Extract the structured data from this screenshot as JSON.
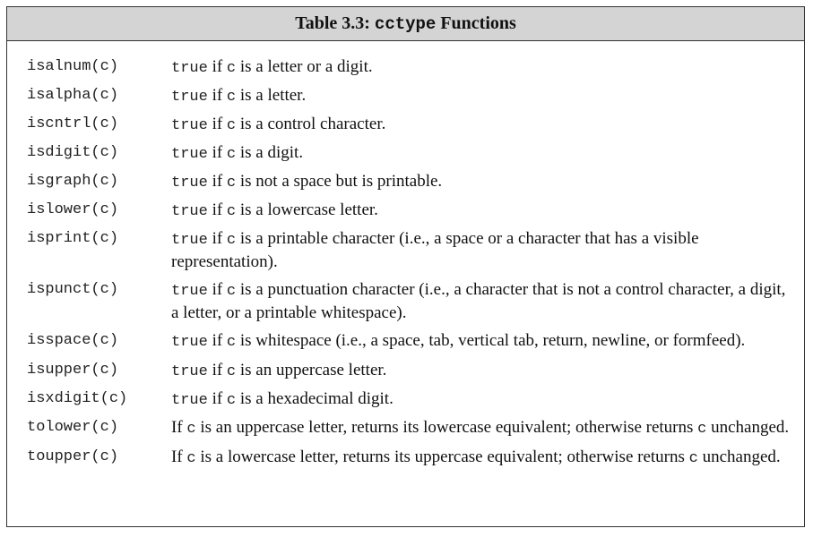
{
  "title": {
    "prefix": "Table 3.3: ",
    "code": "cctype",
    "suffix": " Functions"
  },
  "rows": [
    {
      "fn": "isalnum(c)",
      "parts": [
        [
          "m",
          "true"
        ],
        [
          "t",
          " if "
        ],
        [
          "m",
          "c"
        ],
        [
          "t",
          " is a letter or a digit."
        ]
      ]
    },
    {
      "fn": "isalpha(c)",
      "parts": [
        [
          "m",
          "true"
        ],
        [
          "t",
          " if "
        ],
        [
          "m",
          "c"
        ],
        [
          "t",
          " is a letter."
        ]
      ]
    },
    {
      "fn": "iscntrl(c)",
      "parts": [
        [
          "m",
          "true"
        ],
        [
          "t",
          " if "
        ],
        [
          "m",
          "c"
        ],
        [
          "t",
          " is a control character."
        ]
      ]
    },
    {
      "fn": "isdigit(c)",
      "parts": [
        [
          "m",
          "true"
        ],
        [
          "t",
          " if "
        ],
        [
          "m",
          "c"
        ],
        [
          "t",
          " is a digit."
        ]
      ]
    },
    {
      "fn": "isgraph(c)",
      "parts": [
        [
          "m",
          "true"
        ],
        [
          "t",
          " if "
        ],
        [
          "m",
          "c"
        ],
        [
          "t",
          " is not a space but is printable."
        ]
      ]
    },
    {
      "fn": "islower(c)",
      "parts": [
        [
          "m",
          "true"
        ],
        [
          "t",
          " if "
        ],
        [
          "m",
          "c"
        ],
        [
          "t",
          " is a lowercase letter."
        ]
      ]
    },
    {
      "fn": "isprint(c)",
      "parts": [
        [
          "m",
          "true"
        ],
        [
          "t",
          " if "
        ],
        [
          "m",
          "c"
        ],
        [
          "t",
          " is a printable character (i.e., a space or a character that has a visible representation)."
        ]
      ]
    },
    {
      "fn": "ispunct(c)",
      "parts": [
        [
          "m",
          "true"
        ],
        [
          "t",
          " if "
        ],
        [
          "m",
          "c"
        ],
        [
          "t",
          " is a punctuation character (i.e., a character that is not a control character, a digit, a letter, or a printable whitespace)."
        ]
      ]
    },
    {
      "fn": "isspace(c)",
      "parts": [
        [
          "m",
          "true"
        ],
        [
          "t",
          " if "
        ],
        [
          "m",
          "c"
        ],
        [
          "t",
          " is whitespace (i.e., a space, tab, vertical tab, return, newline, or formfeed)."
        ]
      ]
    },
    {
      "fn": "isupper(c)",
      "parts": [
        [
          "m",
          "true"
        ],
        [
          "t",
          " if "
        ],
        [
          "m",
          "c"
        ],
        [
          "t",
          " is an uppercase letter."
        ]
      ]
    },
    {
      "fn": "isxdigit(c)",
      "parts": [
        [
          "m",
          "true"
        ],
        [
          "t",
          " if "
        ],
        [
          "m",
          "c"
        ],
        [
          "t",
          " is a hexadecimal digit."
        ]
      ]
    },
    {
      "fn": "tolower(c)",
      "parts": [
        [
          "t",
          "If "
        ],
        [
          "m",
          "c"
        ],
        [
          "t",
          " is an uppercase letter, returns its lowercase equivalent; otherwise returns "
        ],
        [
          "m",
          "c"
        ],
        [
          "t",
          " unchanged."
        ]
      ]
    },
    {
      "fn": "toupper(c)",
      "parts": [
        [
          "t",
          "If "
        ],
        [
          "m",
          "c"
        ],
        [
          "t",
          " is a lowercase letter, returns its uppercase equivalent; otherwise returns "
        ],
        [
          "m",
          "c"
        ],
        [
          "t",
          " unchanged."
        ]
      ]
    }
  ]
}
